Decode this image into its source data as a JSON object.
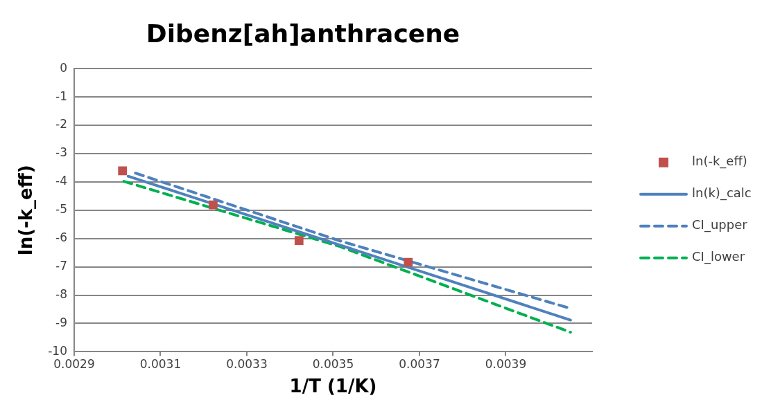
{
  "chart_data": {
    "type": "scatter",
    "title": "Dibenz[ah]anthracene",
    "xlabel": "1/T (1/K)",
    "ylabel": "ln(-k_eff)",
    "xlim": [
      0.0029,
      0.0041
    ],
    "xticks": [
      0.0029,
      0.0031,
      0.0033,
      0.0035,
      0.0037,
      0.0039
    ],
    "ylim": [
      -10,
      0
    ],
    "yticks": [
      -10,
      -9,
      -8,
      -7,
      -6,
      -5,
      -4,
      -3,
      -2,
      -1,
      0
    ],
    "grid": "y",
    "legend": "right",
    "series": [
      {
        "name": "ln(-k_eff)",
        "type": "scatter",
        "marker": "square",
        "color": "#c0504d",
        "x": [
          0.003012,
          0.003222,
          0.003421,
          0.003674
        ],
        "values": [
          -3.61,
          -4.81,
          -6.07,
          -6.84
        ]
      },
      {
        "name": "ln(k)_calc",
        "type": "line",
        "marker": "none",
        "line_style": "solid",
        "color": "#4f81bd",
        "x": [
          0.003025,
          0.00405
        ],
        "values": [
          -3.8,
          -8.88
        ]
      },
      {
        "name": "CI_upper",
        "type": "line",
        "marker": "none",
        "line_style": "dashed",
        "color": "#4f81bd",
        "x": [
          0.003042,
          0.003515,
          0.00405
        ],
        "values": [
          -3.69,
          -6.08,
          -8.47
        ]
      },
      {
        "name": "CI_lower",
        "type": "line",
        "marker": "none",
        "line_style": "dashed",
        "color": "#00b050",
        "x": [
          0.003015,
          0.003515,
          0.00405
        ],
        "values": [
          -3.98,
          -6.28,
          -9.31
        ]
      }
    ]
  }
}
